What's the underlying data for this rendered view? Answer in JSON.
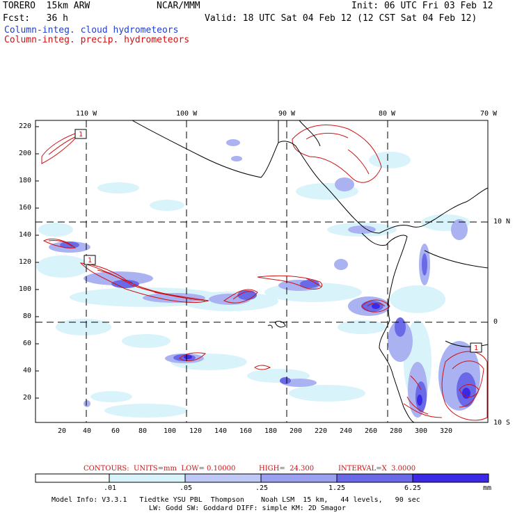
{
  "header": {
    "model": "TORERO  15km ARW",
    "org": "NCAR/MMM",
    "init": "Init: 06 UTC Fri 03 Feb 12",
    "fcst": "Fcst:   36 h",
    "valid": "Valid: 18 UTC Sat 04 Feb 12 (12 CST Sat 04 Feb 12)",
    "field1": "Column-integ. cloud hydrometeors",
    "field2": "Column-integ. precip. hydrometeors"
  },
  "colors": {
    "cloud_field": "#1f3fd0",
    "precip_contour": "#d01010",
    "shades": [
      "#ffffff",
      "#d9f3fb",
      "#c0c8f6",
      "#9aa0f0",
      "#6a6ae8",
      "#3a2ae6"
    ]
  },
  "map": {
    "lon_labels": [
      "110 W",
      "100 W",
      "90 W",
      "80 W",
      "70 W"
    ],
    "lat_labels": [
      "10 N",
      "0",
      "10 S"
    ],
    "y_ticks": [
      "220",
      "200",
      "180",
      "160",
      "140",
      "120",
      "100",
      "80",
      "60",
      "40",
      "20"
    ],
    "x_ticks": [
      "20",
      "40",
      "60",
      "80",
      "100",
      "120",
      "140",
      "160",
      "180",
      "200",
      "220",
      "240",
      "260",
      "280",
      "300",
      "320"
    ],
    "contour_labels": [
      "1",
      "1",
      "1"
    ]
  },
  "contours_info": {
    "units": "CONTOURS:  UNITS=mm  LOW= 0.10000",
    "high": "HIGH=  24.300",
    "interval": "INTERVAL=X  3.0000"
  },
  "colorbar": {
    "labels": [
      ".01",
      ".05",
      ".25",
      "1.25",
      "6.25"
    ],
    "unit": "mm"
  },
  "footer": {
    "line1": "Model Info: V3.3.1   Tiedtke YSU PBL  Thompson    Noah LSM  15 km,   44 levels,   90 sec",
    "line2": "LW: Godd SW: Goddard DIFF: simple KM: 2D Smagor"
  }
}
